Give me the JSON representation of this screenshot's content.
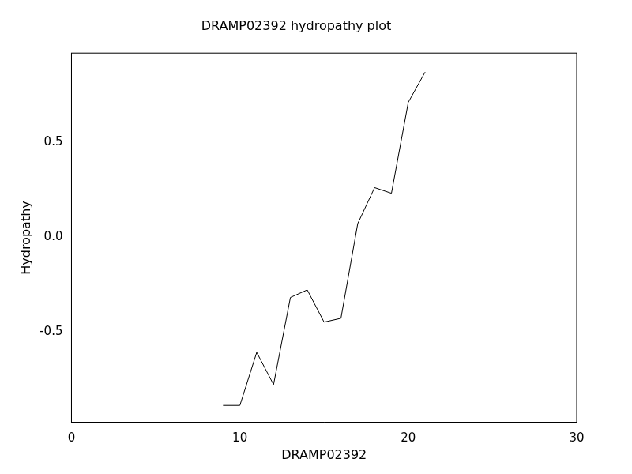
{
  "chart_data": {
    "type": "line",
    "title": "DRAMP02392 hydropathy plot",
    "x_label": "DRAMP02392",
    "y_label": "Hydropathy",
    "x": [
      9,
      10,
      11,
      12,
      13,
      14,
      15,
      16,
      17,
      18,
      19,
      20,
      21
    ],
    "values": [
      -0.89,
      -0.89,
      -0.61,
      -0.78,
      -0.32,
      -0.28,
      -0.45,
      -0.43,
      0.07,
      0.26,
      0.23,
      0.71,
      0.87
    ],
    "color": "#000000",
    "xlim": [
      0,
      30
    ],
    "xticks": [
      0,
      10,
      20,
      30
    ],
    "ylim": [
      -0.98,
      0.97
    ],
    "yticks": [
      -0.5,
      {
        "value": 0,
        "label": "0.0"
      },
      0.5
    ],
    "grid": false
  }
}
